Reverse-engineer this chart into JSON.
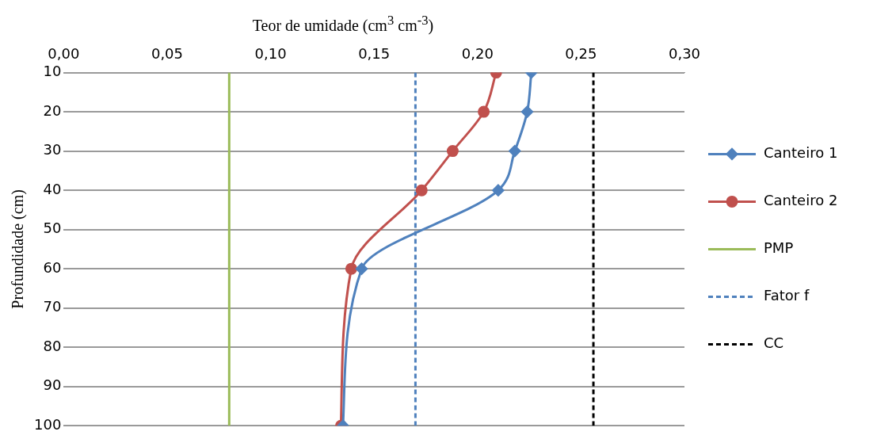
{
  "chart_data": {
    "type": "line",
    "xlabel": "Teor de umidade (cm$^{3}$ cm$^{-3}$)",
    "ylabel": "Profundidade (cm)",
    "xlim": [
      0,
      0.3
    ],
    "xticks": [
      {
        "value": 0,
        "label": "0,00"
      },
      {
        "value": 0.05,
        "label": "0,05"
      },
      {
        "value": 0.1,
        "label": "0,10"
      },
      {
        "value": 0.15,
        "label": "0,15"
      },
      {
        "value": 0.2,
        "label": "0,20"
      },
      {
        "value": 0.25,
        "label": "0,25"
      },
      {
        "value": 0.3,
        "label": "0,30"
      }
    ],
    "ylim": [
      100,
      10
    ],
    "yticks": [
      10,
      20,
      30,
      40,
      50,
      60,
      70,
      80,
      90,
      100
    ],
    "grid": "y",
    "legend": "right",
    "series": [
      {
        "name": "Canteiro 1",
        "color": "#4f81bd",
        "marker": "diamond",
        "line_style": "solid",
        "x": [
          0.226,
          0.224,
          0.218,
          0.21,
          0.144,
          0.135
        ],
        "values": [
          10,
          20,
          30,
          40,
          60,
          100
        ]
      },
      {
        "name": "Canteiro 2",
        "color": "#c0504d",
        "marker": "circle",
        "line_style": "solid",
        "x": [
          0.209,
          0.203,
          0.188,
          0.173,
          0.139,
          0.134
        ],
        "values": [
          10,
          20,
          30,
          40,
          60,
          100
        ]
      },
      {
        "name": "PMP",
        "color": "#9bbb59",
        "marker": "none",
        "line_style": "solid",
        "x": [
          0.08,
          0.08
        ],
        "values": [
          10,
          100
        ]
      },
      {
        "name": "Fator f",
        "color": "#4f81bd",
        "marker": "none",
        "line_style": "dashed",
        "x": [
          0.17,
          0.17
        ],
        "values": [
          10,
          100
        ]
      },
      {
        "name": "CC",
        "color": "#000000",
        "marker": "none",
        "line_style": "dashed",
        "x": [
          0.256,
          0.256
        ],
        "values": [
          10,
          100
        ]
      }
    ]
  }
}
